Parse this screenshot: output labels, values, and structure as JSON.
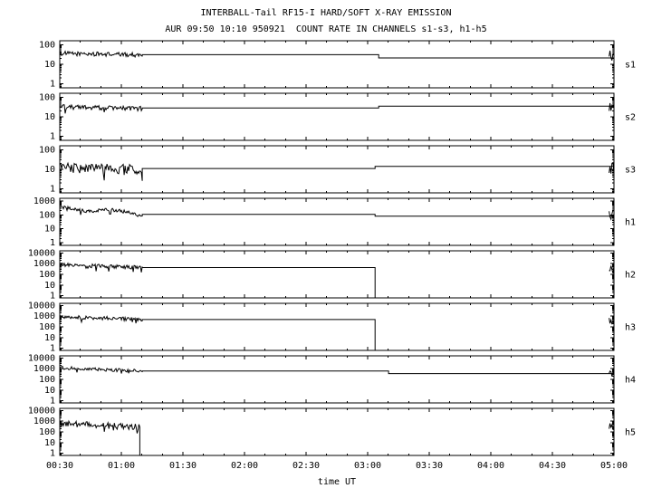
{
  "title": "INTERBALL-Tail RF15-I HARD/SOFT X-RAY EMISSION",
  "subtitle": "AUR 09:50 10:10 950921  COUNT RATE IN CHANNELS s1-s3, h1-h5",
  "colors": {
    "trace": "#000000",
    "axis": "#000000",
    "background": "#ffffff"
  },
  "chart_data": {
    "type": "line",
    "title": "INTERBALL-Tail RF15-I HARD/SOFT X-RAY EMISSION",
    "subtitle": "AUR 09:50 10:10 950921  COUNT RATE IN CHANNELS s1-s3, h1-h5",
    "xlabel": "time UT",
    "y_scale": "log",
    "grid": false,
    "x_range_hours": [
      0.5,
      5.0
    ],
    "x_ticks": [
      {
        "label": "00:30",
        "hour": 0.5
      },
      {
        "label": "01:00",
        "hour": 1.0
      },
      {
        "label": "01:30",
        "hour": 1.5
      },
      {
        "label": "02:00",
        "hour": 2.0
      },
      {
        "label": "02:30",
        "hour": 2.5
      },
      {
        "label": "03:00",
        "hour": 3.0
      },
      {
        "label": "03:30",
        "hour": 3.5
      },
      {
        "label": "04:00",
        "hour": 4.0
      },
      {
        "label": "04:30",
        "hour": 4.5
      },
      {
        "label": "05:00",
        "hour": 5.0
      }
    ],
    "panels": [
      {
        "name": "s1",
        "yticks": [
          100,
          10,
          1
        ],
        "log_range": [
          -0.2,
          2.2
        ],
        "segments": [
          {
            "type": "noise",
            "t": [
              0.5,
              1.17
            ],
            "level": 36,
            "level_end": 30,
            "jitter": 0.11
          },
          {
            "type": "flat",
            "t": [
              1.17,
              3.09
            ],
            "value": 31
          },
          {
            "type": "flat",
            "t": [
              3.09,
              5.0
            ],
            "value": 21
          },
          {
            "type": "noise",
            "t": [
              4.96,
              5.0
            ],
            "level": 28,
            "jitter": 0.3,
            "overlay": true
          }
        ]
      },
      {
        "name": "s2",
        "yticks": [
          100,
          10,
          1
        ],
        "log_range": [
          -0.2,
          2.2
        ],
        "segments": [
          {
            "type": "noise",
            "t": [
              0.5,
              1.17
            ],
            "level": 32,
            "level_end": 26,
            "jitter": 0.12
          },
          {
            "type": "flat",
            "t": [
              1.17,
              3.09
            ],
            "value": 28
          },
          {
            "type": "flat",
            "t": [
              3.09,
              5.0
            ],
            "value": 35
          },
          {
            "type": "noise",
            "t": [
              4.96,
              5.0
            ],
            "level": 30,
            "jitter": 0.3,
            "overlay": true
          }
        ]
      },
      {
        "name": "s3",
        "yticks": [
          100,
          10,
          1
        ],
        "log_range": [
          -0.2,
          2.2
        ],
        "segments": [
          {
            "type": "noise",
            "t": [
              0.5,
              1.17
            ],
            "level": 12,
            "level_end": 10,
            "jitter": 0.25
          },
          {
            "type": "flat",
            "t": [
              1.17,
              3.06
            ],
            "value": 11
          },
          {
            "type": "flat",
            "t": [
              3.06,
              5.0
            ],
            "value": 14
          },
          {
            "type": "noise",
            "t": [
              4.96,
              5.0
            ],
            "level": 10,
            "jitter": 0.35,
            "overlay": true
          }
        ]
      },
      {
        "name": "h1",
        "yticks": [
          1000,
          100,
          10,
          1
        ],
        "log_range": [
          -0.2,
          3.2
        ],
        "segments": [
          {
            "type": "noise",
            "t": [
              0.5,
              1.17
            ],
            "level": 320,
            "level_end": 130,
            "jitter": 0.12,
            "wobble": 0.1
          },
          {
            "type": "flat",
            "t": [
              1.17,
              3.06
            ],
            "value": 110
          },
          {
            "type": "flat",
            "t": [
              3.06,
              5.0
            ],
            "value": 80
          },
          {
            "type": "noise",
            "t": [
              4.96,
              5.0
            ],
            "level": 110,
            "jitter": 0.35,
            "overlay": true
          }
        ]
      },
      {
        "name": "h2",
        "yticks": [
          10000,
          1000,
          100,
          10,
          1
        ],
        "log_range": [
          -0.2,
          4.2
        ],
        "segments": [
          {
            "type": "noise",
            "t": [
              0.5,
              1.17
            ],
            "level": 800,
            "level_end": 420,
            "jitter": 0.18
          },
          {
            "type": "flat",
            "t": [
              1.17,
              3.06
            ],
            "value": 430
          },
          {
            "type": "flat",
            "t": [
              3.06,
              5.0
            ],
            "value": 0.5
          },
          {
            "type": "noise",
            "t": [
              4.96,
              5.0
            ],
            "level": 300,
            "jitter": 0.4,
            "overlay": true
          }
        ]
      },
      {
        "name": "h3",
        "yticks": [
          10000,
          1000,
          100,
          10,
          1
        ],
        "log_range": [
          -0.2,
          4.2
        ],
        "segments": [
          {
            "type": "noise",
            "t": [
              0.5,
              1.17
            ],
            "level": 900,
            "level_end": 500,
            "jitter": 0.17
          },
          {
            "type": "flat",
            "t": [
              1.17,
              3.06
            ],
            "value": 480
          },
          {
            "type": "flat",
            "t": [
              3.06,
              5.0
            ],
            "value": 0.5
          },
          {
            "type": "noise",
            "t": [
              4.96,
              5.0
            ],
            "level": 300,
            "jitter": 0.4,
            "overlay": true
          }
        ]
      },
      {
        "name": "h4",
        "yticks": [
          10000,
          1000,
          100,
          10,
          1
        ],
        "log_range": [
          -0.2,
          4.2
        ],
        "segments": [
          {
            "type": "noise",
            "t": [
              0.5,
              1.17
            ],
            "level": 1200,
            "level_end": 600,
            "jitter": 0.15
          },
          {
            "type": "flat",
            "t": [
              1.17,
              3.17
            ],
            "value": 600
          },
          {
            "type": "flat",
            "t": [
              3.17,
              5.0
            ],
            "value": 350
          },
          {
            "type": "noise",
            "t": [
              4.96,
              5.0
            ],
            "level": 350,
            "jitter": 0.35,
            "overlay": true
          }
        ]
      },
      {
        "name": "h5",
        "yticks": [
          10000,
          1000,
          100,
          10,
          1
        ],
        "log_range": [
          -0.2,
          4.2
        ],
        "segments": [
          {
            "type": "noise",
            "t": [
              0.5,
              1.15
            ],
            "level": 600,
            "level_end": 280,
            "jitter": 0.3
          },
          {
            "type": "flat",
            "t": [
              1.15,
              5.0
            ],
            "value": 0.5
          },
          {
            "type": "noise",
            "t": [
              4.96,
              5.0
            ],
            "level": 350,
            "jitter": 0.4,
            "overlay": true
          }
        ]
      }
    ]
  }
}
